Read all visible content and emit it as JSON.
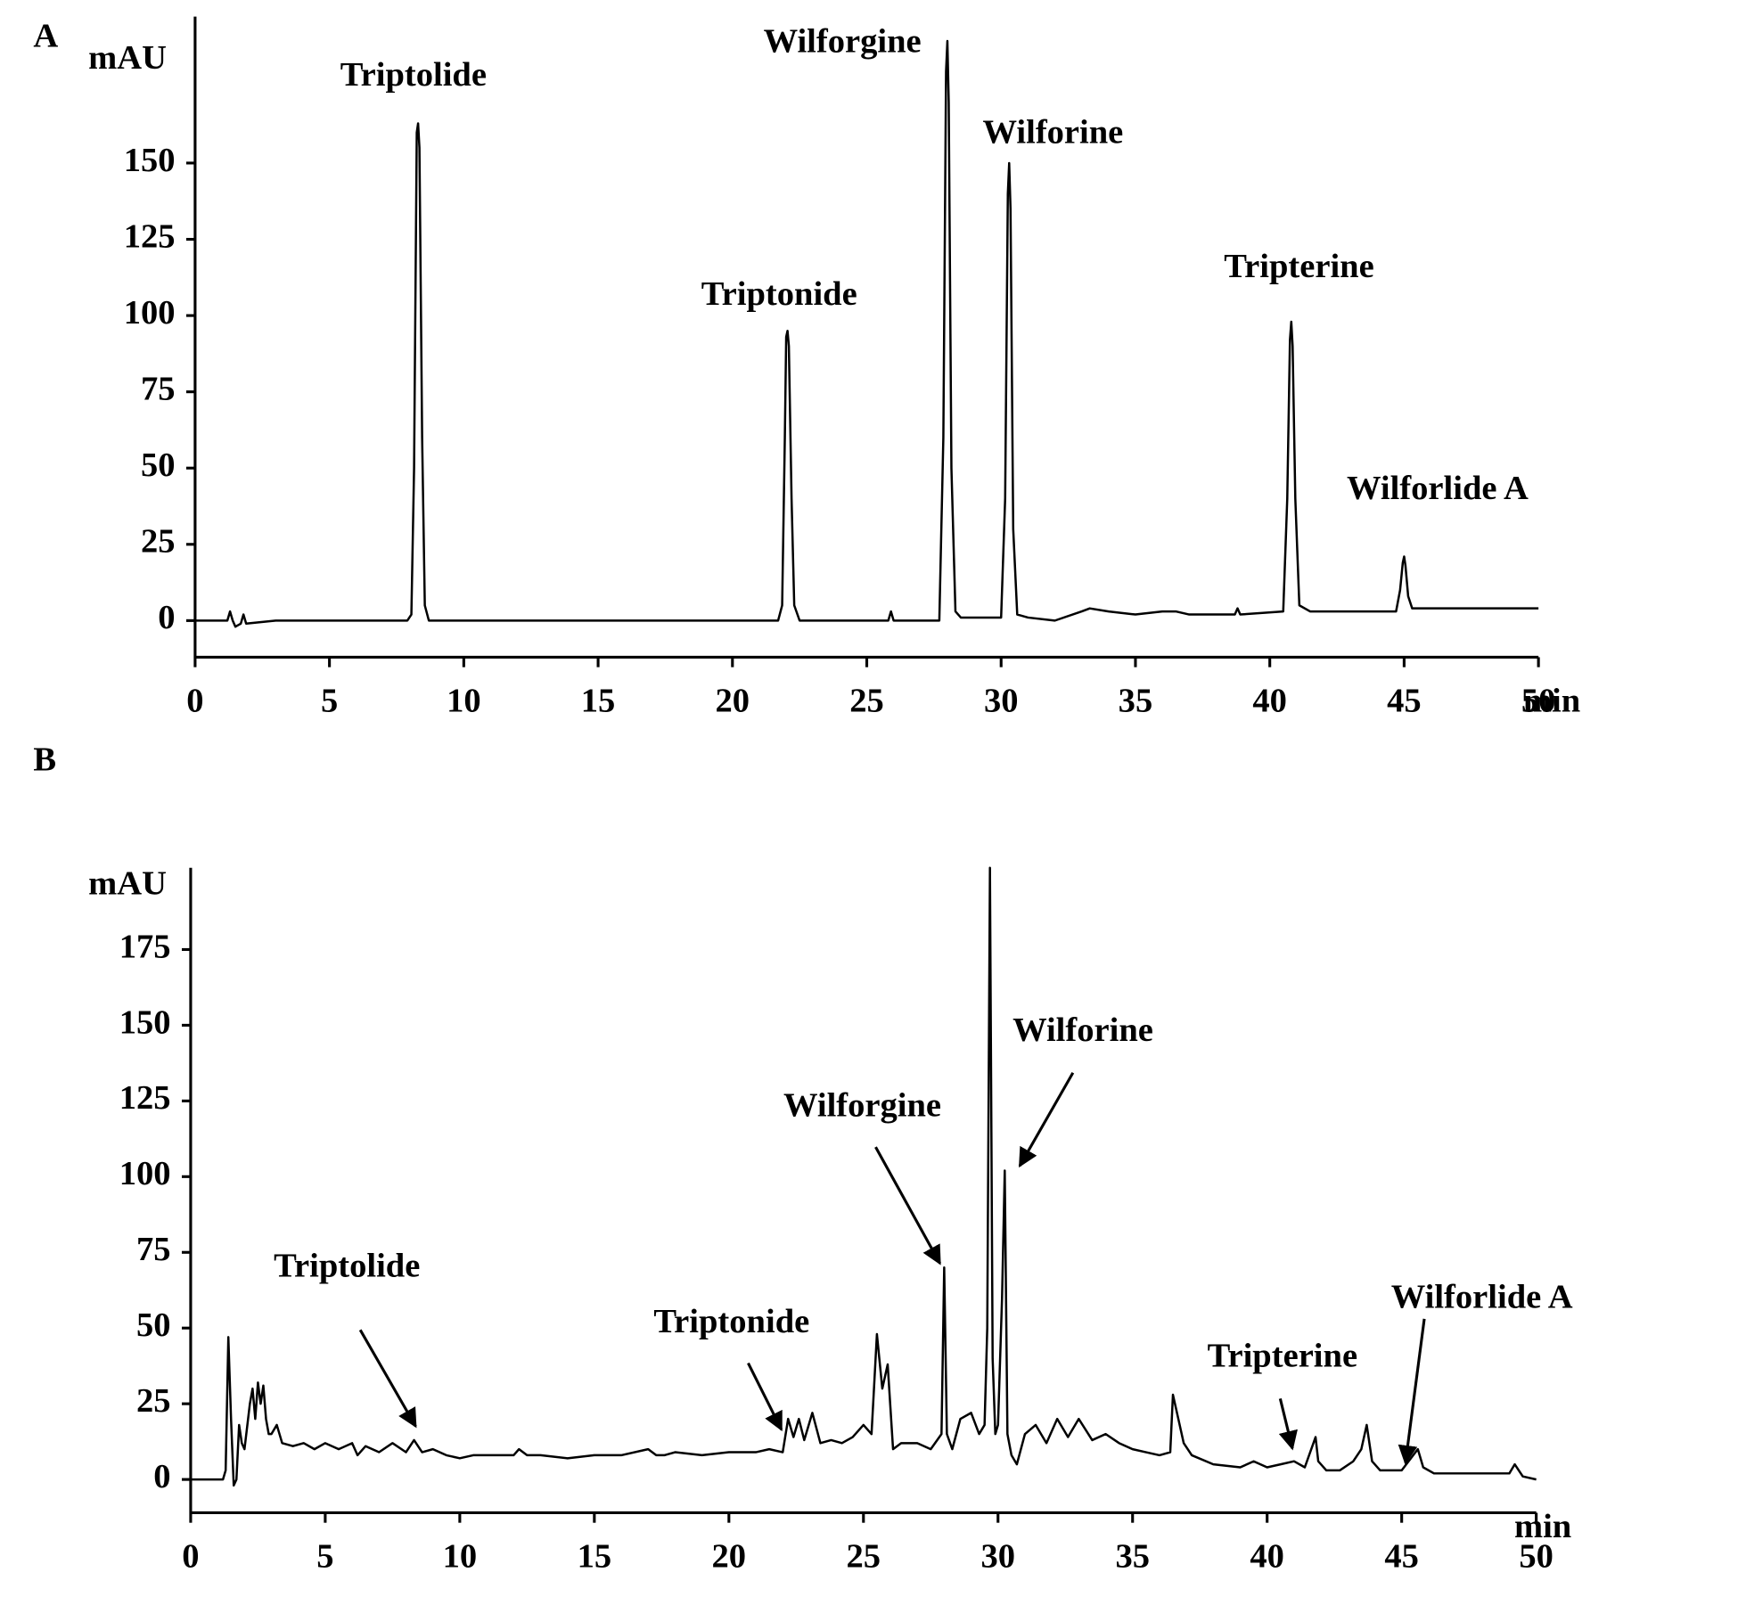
{
  "chart_data": [
    {
      "type": "line",
      "panel_label": "A",
      "y_label": "mAU",
      "x_label": "min",
      "annotations": [
        "Triptolide",
        "Triptonide",
        "Wilforgine",
        "Wilforine",
        "Tripterine",
        "Wilforlide A"
      ],
      "x": [
        0,
        1.2,
        1.3,
        1.4,
        1.5,
        1.7,
        1.8,
        1.9,
        3,
        7.9,
        8.05,
        8.15,
        8.25,
        8.3,
        8.35,
        8.45,
        8.55,
        8.7,
        21.7,
        21.85,
        21.95,
        22.0,
        22.05,
        22.1,
        22.2,
        22.3,
        22.5,
        25.8,
        25.9,
        26.0,
        27.7,
        27.85,
        27.95,
        28.0,
        28.05,
        28.15,
        28.3,
        28.5,
        30.0,
        30.15,
        30.25,
        30.3,
        30.35,
        30.45,
        30.6,
        31,
        32,
        33,
        33.3,
        34,
        35,
        36,
        36.5,
        37,
        38.7,
        38.8,
        38.9,
        40.5,
        40.65,
        40.75,
        40.8,
        40.85,
        40.95,
        41.1,
        41.5,
        44.7,
        44.85,
        44.95,
        45.0,
        45.05,
        45.15,
        45.3,
        47,
        50
      ],
      "series": [
        {
          "color": "#000000",
          "values": [
            0,
            0,
            3,
            0,
            -2,
            -1,
            2,
            -1,
            0,
            0,
            2,
            50,
            160,
            163,
            155,
            60,
            5,
            0,
            0,
            5,
            60,
            93,
            95,
            90,
            40,
            5,
            0,
            0,
            3,
            0,
            0,
            60,
            180,
            190,
            170,
            50,
            3,
            1,
            1,
            40,
            140,
            150,
            135,
            30,
            2,
            1,
            0,
            3,
            4,
            3,
            2,
            3,
            3,
            2,
            2,
            4,
            2,
            3,
            40,
            92,
            98,
            90,
            40,
            5,
            3,
            3,
            10,
            19,
            21,
            18,
            8,
            4,
            4,
            4
          ]
        }
      ],
      "xlim": [
        0,
        50
      ],
      "ylim": [
        -12,
        198
      ],
      "xticks": [
        0,
        5,
        10,
        15,
        20,
        25,
        30,
        35,
        40,
        45,
        50
      ],
      "yticks": [
        0,
        25,
        50,
        75,
        100,
        125,
        150
      ]
    },
    {
      "type": "line",
      "panel_label": "B",
      "y_label": "mAU",
      "x_label": "min",
      "annotations": [
        "Triptolide",
        "Triptonide",
        "Wilforgine",
        "Wilforine",
        "Tripterine",
        "Wilforlide A"
      ],
      "x": [
        0,
        1.2,
        1.3,
        1.4,
        1.5,
        1.6,
        1.7,
        1.8,
        1.9,
        2.0,
        2.2,
        2.3,
        2.4,
        2.5,
        2.6,
        2.7,
        2.8,
        2.9,
        3.0,
        3.2,
        3.4,
        3.8,
        4.2,
        4.6,
        5,
        5.5,
        6,
        6.2,
        6.5,
        7,
        7.5,
        8,
        8.3,
        8.6,
        9,
        9.5,
        10,
        10.5,
        11,
        11.5,
        12,
        12.2,
        12.5,
        13,
        14,
        15,
        16,
        17,
        17.3,
        17.6,
        18,
        19,
        20,
        21,
        21.5,
        22,
        22.2,
        22.4,
        22.6,
        22.8,
        23.1,
        23.4,
        23.8,
        24.2,
        24.6,
        25,
        25.3,
        25.5,
        25.7,
        25.9,
        26.1,
        26.4,
        27,
        27.5,
        27.9,
        28.0,
        28.1,
        28.3,
        28.6,
        29,
        29.3,
        29.5,
        29.6,
        29.7,
        29.8,
        29.9,
        30.0,
        30.15,
        30.25,
        30.35,
        30.5,
        30.7,
        31,
        31.4,
        31.8,
        32.2,
        32.6,
        33,
        33.5,
        34,
        34.5,
        35,
        35.5,
        36,
        36.4,
        36.5,
        36.7,
        36.9,
        37.2,
        38,
        39,
        39.5,
        40,
        40.5,
        41,
        41.4,
        41.8,
        41.9,
        42.2,
        42.7,
        43.2,
        43.5,
        43.7,
        43.9,
        44.2,
        45,
        45.6,
        45.8,
        46.2,
        47,
        48,
        49,
        49.2,
        49.5,
        50
      ],
      "series": [
        {
          "color": "#000000",
          "values": [
            0,
            0,
            3,
            47,
            20,
            -2,
            0,
            18,
            12,
            10,
            25,
            30,
            20,
            32,
            25,
            31,
            20,
            15,
            15,
            18,
            12,
            11,
            12,
            10,
            12,
            10,
            12,
            8,
            11,
            9,
            12,
            9,
            13,
            9,
            10,
            8,
            7,
            8,
            8,
            8,
            8,
            10,
            8,
            8,
            7,
            8,
            8,
            10,
            8,
            8,
            9,
            8,
            9,
            9,
            10,
            9,
            20,
            14,
            20,
            13,
            22,
            12,
            13,
            12,
            14,
            18,
            15,
            48,
            30,
            38,
            10,
            12,
            12,
            10,
            15,
            70,
            15,
            10,
            20,
            22,
            15,
            18,
            50,
            202,
            40,
            15,
            18,
            60,
            102,
            15,
            8,
            5,
            15,
            18,
            12,
            20,
            14,
            20,
            13,
            15,
            12,
            10,
            9,
            8,
            9,
            28,
            20,
            12,
            8,
            5,
            4,
            6,
            4,
            5,
            6,
            4,
            14,
            6,
            3,
            3,
            6,
            10,
            18,
            6,
            3,
            3,
            10,
            4,
            2,
            2,
            2,
            2,
            5,
            1,
            0
          ]
        }
      ],
      "xlim": [
        0,
        50
      ],
      "ylim": [
        -11,
        202
      ],
      "xticks": [
        0,
        5,
        10,
        15,
        20,
        25,
        30,
        35,
        40,
        45,
        50
      ],
      "yticks": [
        0,
        25,
        50,
        75,
        100,
        125,
        150,
        175
      ]
    }
  ]
}
